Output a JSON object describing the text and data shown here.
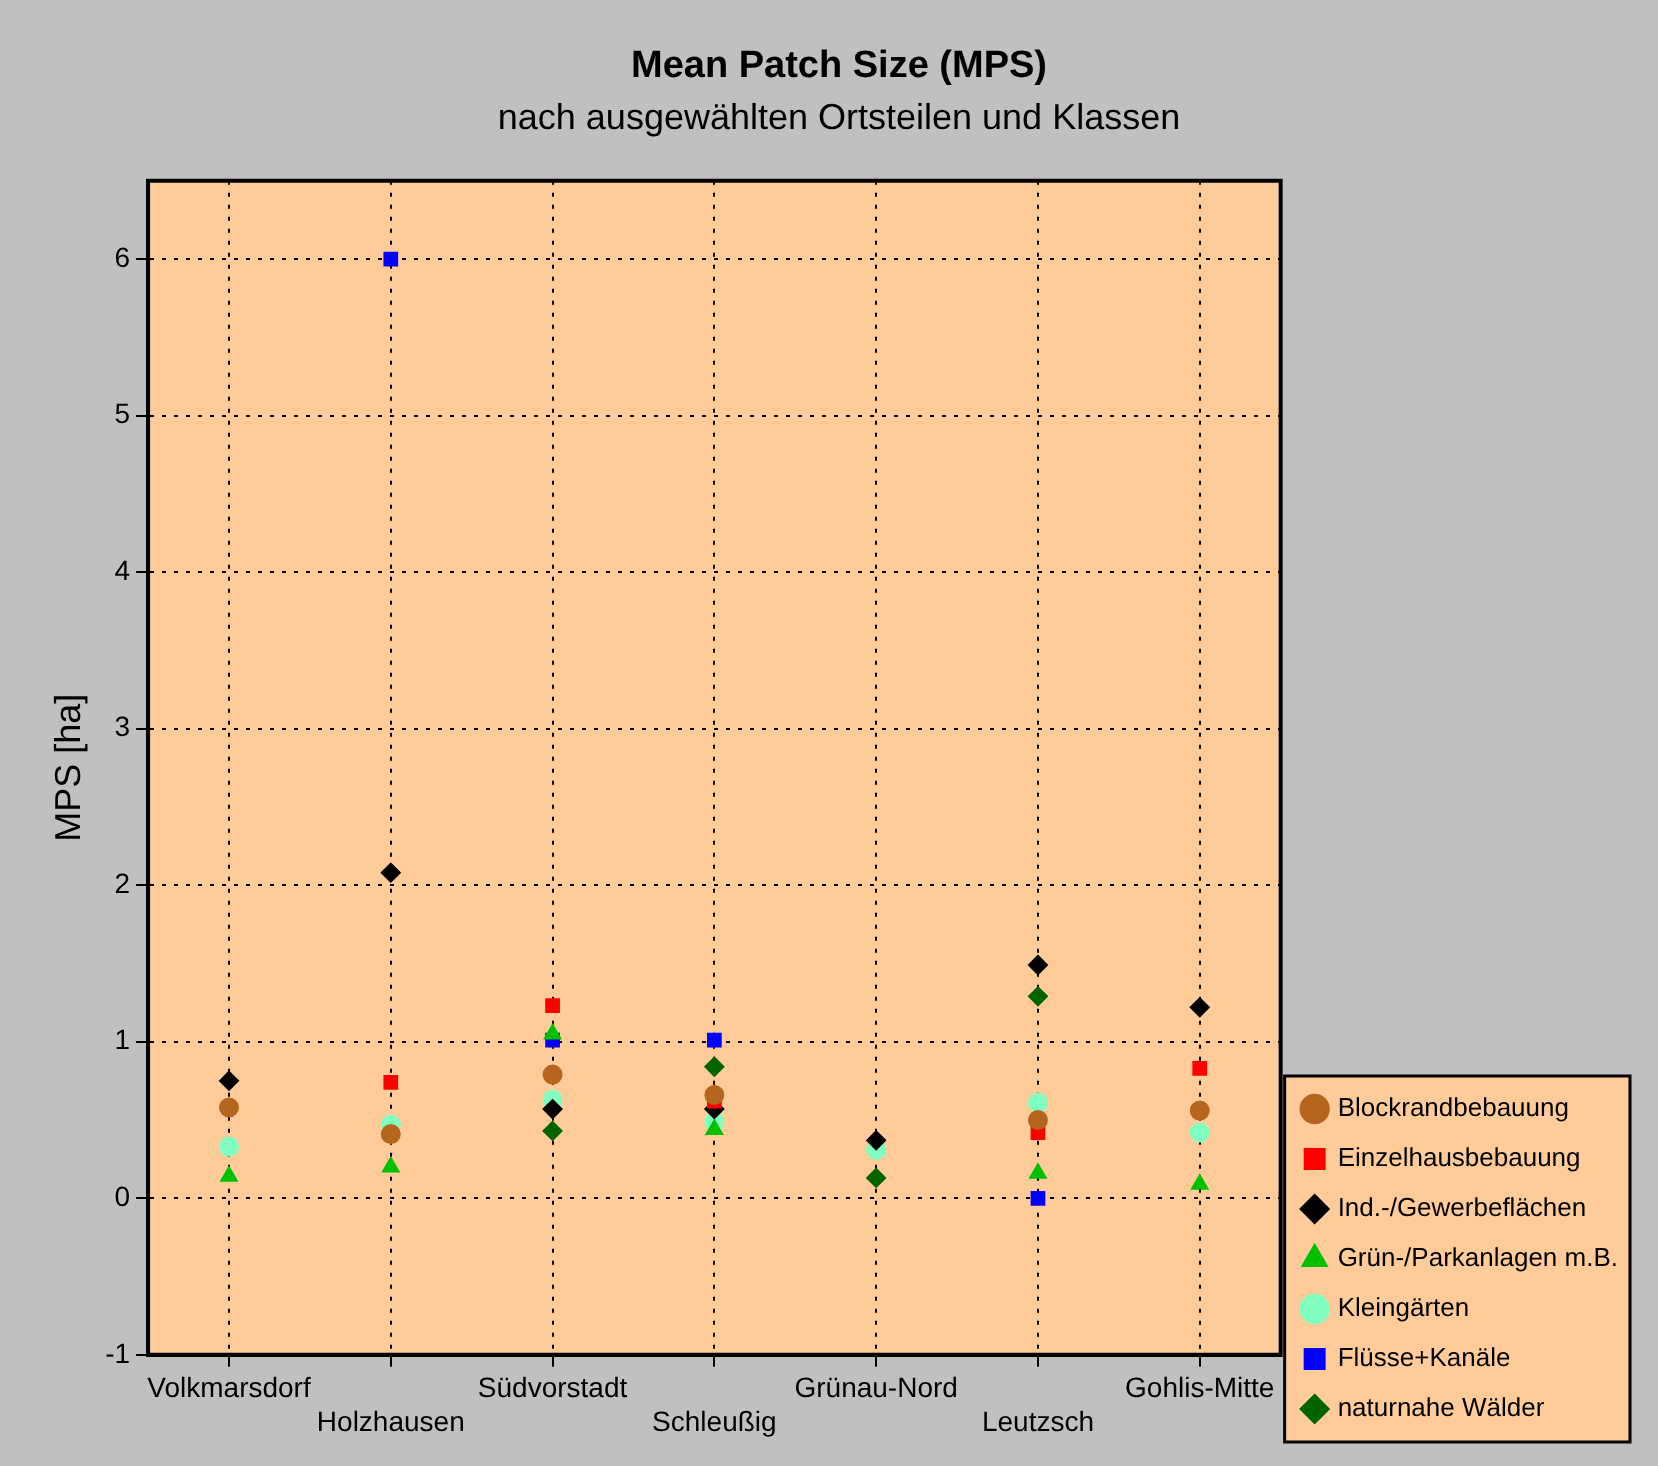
{
  "chart_data": {
    "type": "scatter",
    "title": "Mean Patch Size (MPS)",
    "subtitle": "nach ausgewählten Ortsteilen und Klassen",
    "ylabel": "MPS [ha]",
    "categories": [
      "Volkmarsdorf",
      "Holzhausen",
      "Südvorstadt",
      "Schleußig",
      "Grünau-Nord",
      "Leutzsch",
      "Gohlis-Mitte"
    ],
    "ylim": [
      -1,
      6.5
    ],
    "yticks": [
      -1,
      0,
      1,
      2,
      3,
      4,
      5,
      6
    ],
    "grid": true,
    "legend": "right",
    "series": [
      {
        "name": "Blockrandbebauung",
        "color": "#b5651d",
        "marker": "circle",
        "values": [
          0.58,
          0.41,
          0.79,
          0.66,
          null,
          0.5,
          0.56
        ]
      },
      {
        "name": "Einzelhausbebauung",
        "color": "#ff0000",
        "marker": "square",
        "values": [
          null,
          0.74,
          1.23,
          0.62,
          null,
          0.42,
          0.83
        ]
      },
      {
        "name": "Ind.-/Gewerbeflächen",
        "color": "#000000",
        "marker": "diamond",
        "values": [
          0.75,
          2.08,
          0.57,
          0.57,
          0.37,
          1.49,
          1.22
        ]
      },
      {
        "name": "Grün-/Parkanlagen m.B.",
        "color": "#00c000",
        "marker": "triangle",
        "values": [
          0.14,
          0.2,
          1.05,
          0.44,
          null,
          0.16,
          0.09
        ]
      },
      {
        "name": "Kleingärten",
        "color": "#80ffc0",
        "marker": "circle",
        "values": [
          0.33,
          0.47,
          0.63,
          0.49,
          0.31,
          0.61,
          0.42
        ]
      },
      {
        "name": "Flüsse+Kanäle",
        "color": "#0000ff",
        "marker": "square",
        "values": [
          null,
          6,
          1.01,
          1.01,
          null,
          0,
          null
        ]
      },
      {
        "name": "naturnahe Wälder",
        "color": "#006400",
        "marker": "diamond",
        "values": [
          null,
          null,
          0.43,
          0.84,
          0.13,
          1.29,
          null
        ]
      }
    ]
  }
}
